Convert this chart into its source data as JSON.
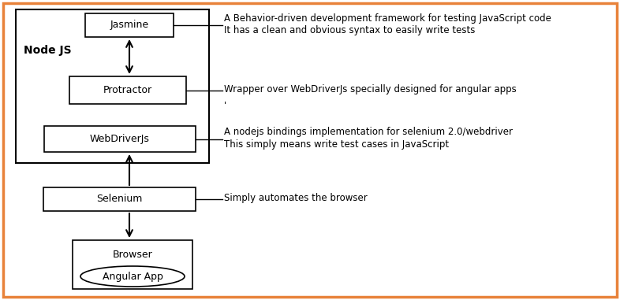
{
  "outer_border_color": "#E8823A",
  "bg_color": "#FFFFFF",
  "box_edge_color": "#000000",
  "box_face_color": "#FFFFFF",
  "text_color": "#000000",
  "font_family": "DejaVu Sans",
  "node_js_label": "Node JS",
  "jasmine_label": "Jasmine",
  "protractor_label": "Protractor",
  "webdriver_label": "WebDriverJs",
  "selenium_label": "Selenium",
  "browser_label": "Browser",
  "angular_label": "Angular App",
  "jasmine_desc": "A Behavior-driven development framework for testing JavaScript code\nIt has a clean and obvious syntax to easily write tests",
  "protractor_desc": "Wrapper over WebDriverJs specially designed for angular apps",
  "tick_mark": "'",
  "webdriver_desc": "A nodejs bindings implementation for selenium 2.0/webdriver\nThis simply means write test cases in JavaScript",
  "selenium_desc": "Simply automates the browser",
  "desc_fontsize": 8.5,
  "label_fontsize": 9,
  "nodejs_fontsize": 10,
  "figw": 7.86,
  "figh": 3.81,
  "dpi": 100
}
